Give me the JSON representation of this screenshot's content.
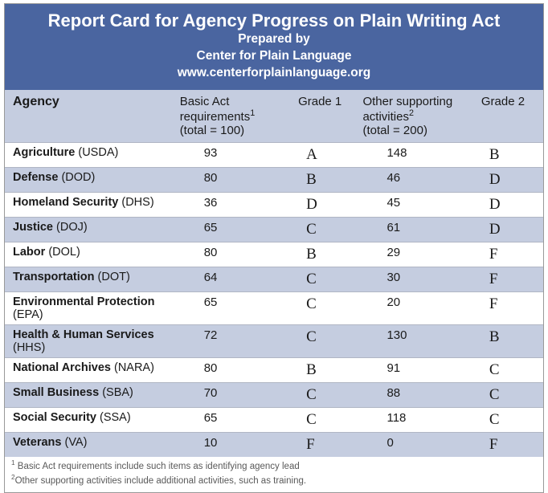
{
  "colors": {
    "header_bg": "#4a65a0",
    "header_text": "#ffffff",
    "band_bg": "#c5cde0",
    "row_alt_bg": "#ffffff",
    "text": "#1a1a1a",
    "footnote": "#595959",
    "border": "#b0b6c4"
  },
  "header": {
    "title": "Report Card for Agency Progress on Plain Writing Act",
    "line2": "Prepared by",
    "line3": "Center for Plain Language",
    "line4": "www.centerforplainlanguage.org"
  },
  "columns": {
    "agency": "Agency",
    "basic_line1": "Basic Act",
    "basic_line2": "requirements",
    "basic_sup": "1",
    "basic_line3": "(total = 100)",
    "grade1": "Grade 1",
    "other_line1": "Other supporting",
    "other_line2": "activities",
    "other_sup": "2",
    "other_line3": "(total = 200)",
    "grade2": "Grade 2"
  },
  "rows": [
    {
      "name": "Agriculture",
      "abbr": "(USDA)",
      "basic": "93",
      "g1": "A",
      "other": "148",
      "g2": "B"
    },
    {
      "name": "Defense",
      "abbr": "(DOD)",
      "basic": "80",
      "g1": "B",
      "other": "46",
      "g2": "D"
    },
    {
      "name": "Homeland Security",
      "abbr": "(DHS)",
      "basic": "36",
      "g1": "D",
      "other": "45",
      "g2": "D"
    },
    {
      "name": "Justice",
      "abbr": "(DOJ)",
      "basic": "65",
      "g1": "C",
      "other": "61",
      "g2": "D"
    },
    {
      "name": "Labor",
      "abbr": "(DOL)",
      "basic": "80",
      "g1": "B",
      "other": "29",
      "g2": "F"
    },
    {
      "name": "Transportation",
      "abbr": "(DOT)",
      "basic": "64",
      "g1": "C",
      "other": "30",
      "g2": "F"
    },
    {
      "name": "Environmental Protection",
      "abbr": "(EPA)",
      "basic": "65",
      "g1": "C",
      "other": "20",
      "g2": "F"
    },
    {
      "name": "Health & Human Services",
      "abbr": "(HHS)",
      "basic": "72",
      "g1": "C",
      "other": "130",
      "g2": "B"
    },
    {
      "name": "National Archives",
      "abbr": "(NARA)",
      "basic": "80",
      "g1": "B",
      "other": "91",
      "g2": "C"
    },
    {
      "name": "Small Business",
      "abbr": "(SBA)",
      "basic": "70",
      "g1": "C",
      "other": "88",
      "g2": "C"
    },
    {
      "name": "Social Security",
      "abbr": "(SSA)",
      "basic": "65",
      "g1": "C",
      "other": "118",
      "g2": "C"
    },
    {
      "name": "Veterans",
      "abbr": "(VA)",
      "basic": "10",
      "g1": "F",
      "other": "0",
      "g2": "F"
    }
  ],
  "footnotes": {
    "f1_sup": "1",
    "f1": " Basic Act requirements include such items as identifying agency lead",
    "f2_sup": "2",
    "f2": "Other supporting activities include additional activities, such as training."
  }
}
